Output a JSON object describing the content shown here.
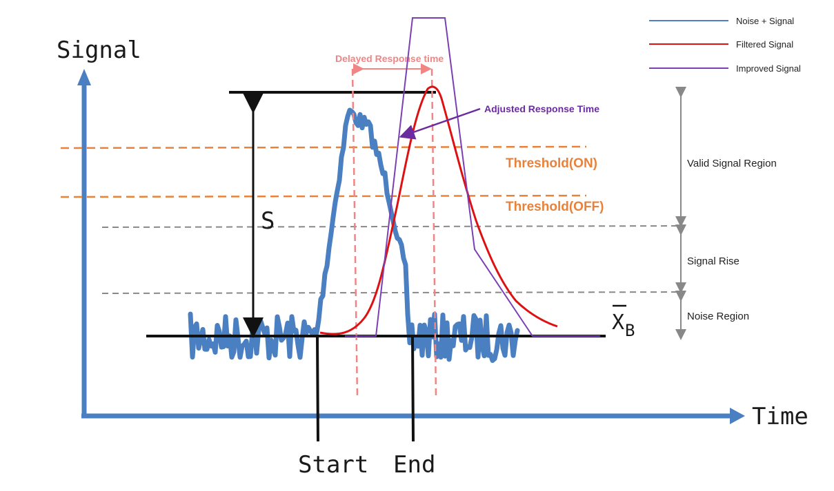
{
  "axes": {
    "y_label": "Signal",
    "x_label": "Time",
    "axis_color": "#4a7fc1"
  },
  "markers": {
    "start_label": "Start",
    "end_label": "End",
    "amplitude_label": "S",
    "baseline_label": "X",
    "baseline_subscript": "B"
  },
  "thresholds": {
    "on_label": "Threshold(ON)",
    "off_label": "Threshold(OFF)",
    "color": "#e8823a"
  },
  "annotations": {
    "delayed_response": "Delayed Response time",
    "adjusted_response": "Adjusted Response Time",
    "delay_color": "#f08585",
    "adjusted_color": "#6a2aa0"
  },
  "legend": [
    {
      "name": "Noise + Signal",
      "color": "#4a7fc1"
    },
    {
      "name": "Filtered Signal",
      "color": "#dd1111"
    },
    {
      "name": "Improved Signal",
      "color": "#7a3fb5"
    }
  ],
  "regions": [
    {
      "label": "Valid Signal Region"
    },
    {
      "label": "Signal Rise"
    },
    {
      "label": "Noise Region"
    }
  ]
}
